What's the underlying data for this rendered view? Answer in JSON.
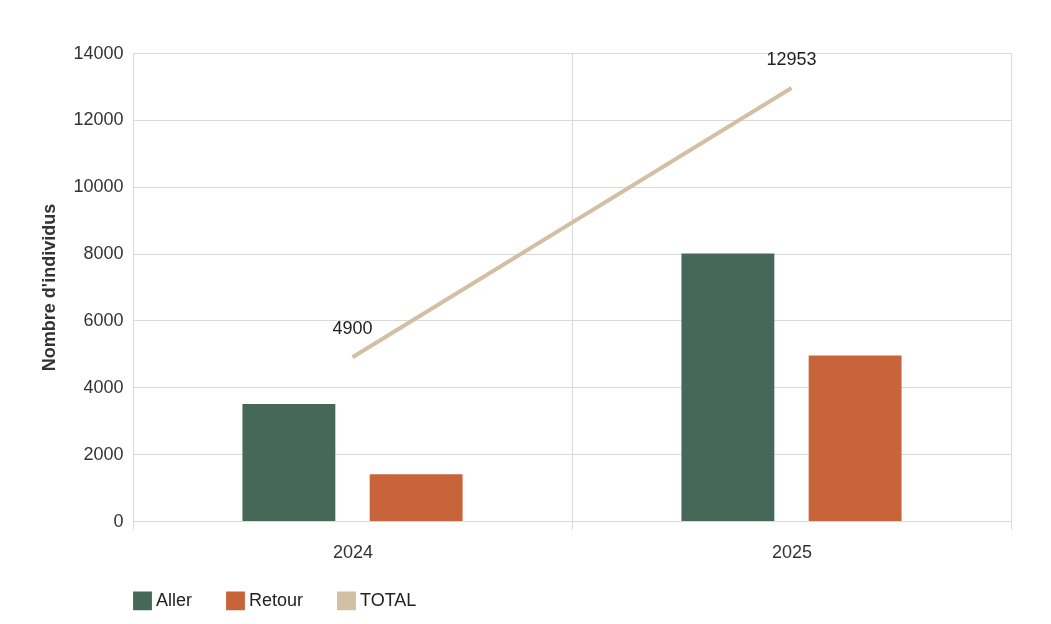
{
  "chart_data": {
    "type": "bar",
    "ylabel": "Nombre d'individus",
    "categories": [
      "2024",
      "2025"
    ],
    "series": [
      {
        "name": "Aller",
        "color": "#466858",
        "values": [
          3500,
          8000
        ]
      },
      {
        "name": "Retour",
        "color": "#c8643a",
        "values": [
          1400,
          4950
        ]
      },
      {
        "name": "TOTAL",
        "type": "line",
        "color": "#d2bfa4",
        "values": [
          4900,
          12953
        ],
        "value_labels": [
          "4900",
          "12953"
        ]
      }
    ],
    "ylim": [
      0,
      14000
    ],
    "yticks": [
      0,
      2000,
      4000,
      6000,
      8000,
      10000,
      12000,
      14000
    ],
    "grid": true,
    "legend": "bottom"
  }
}
